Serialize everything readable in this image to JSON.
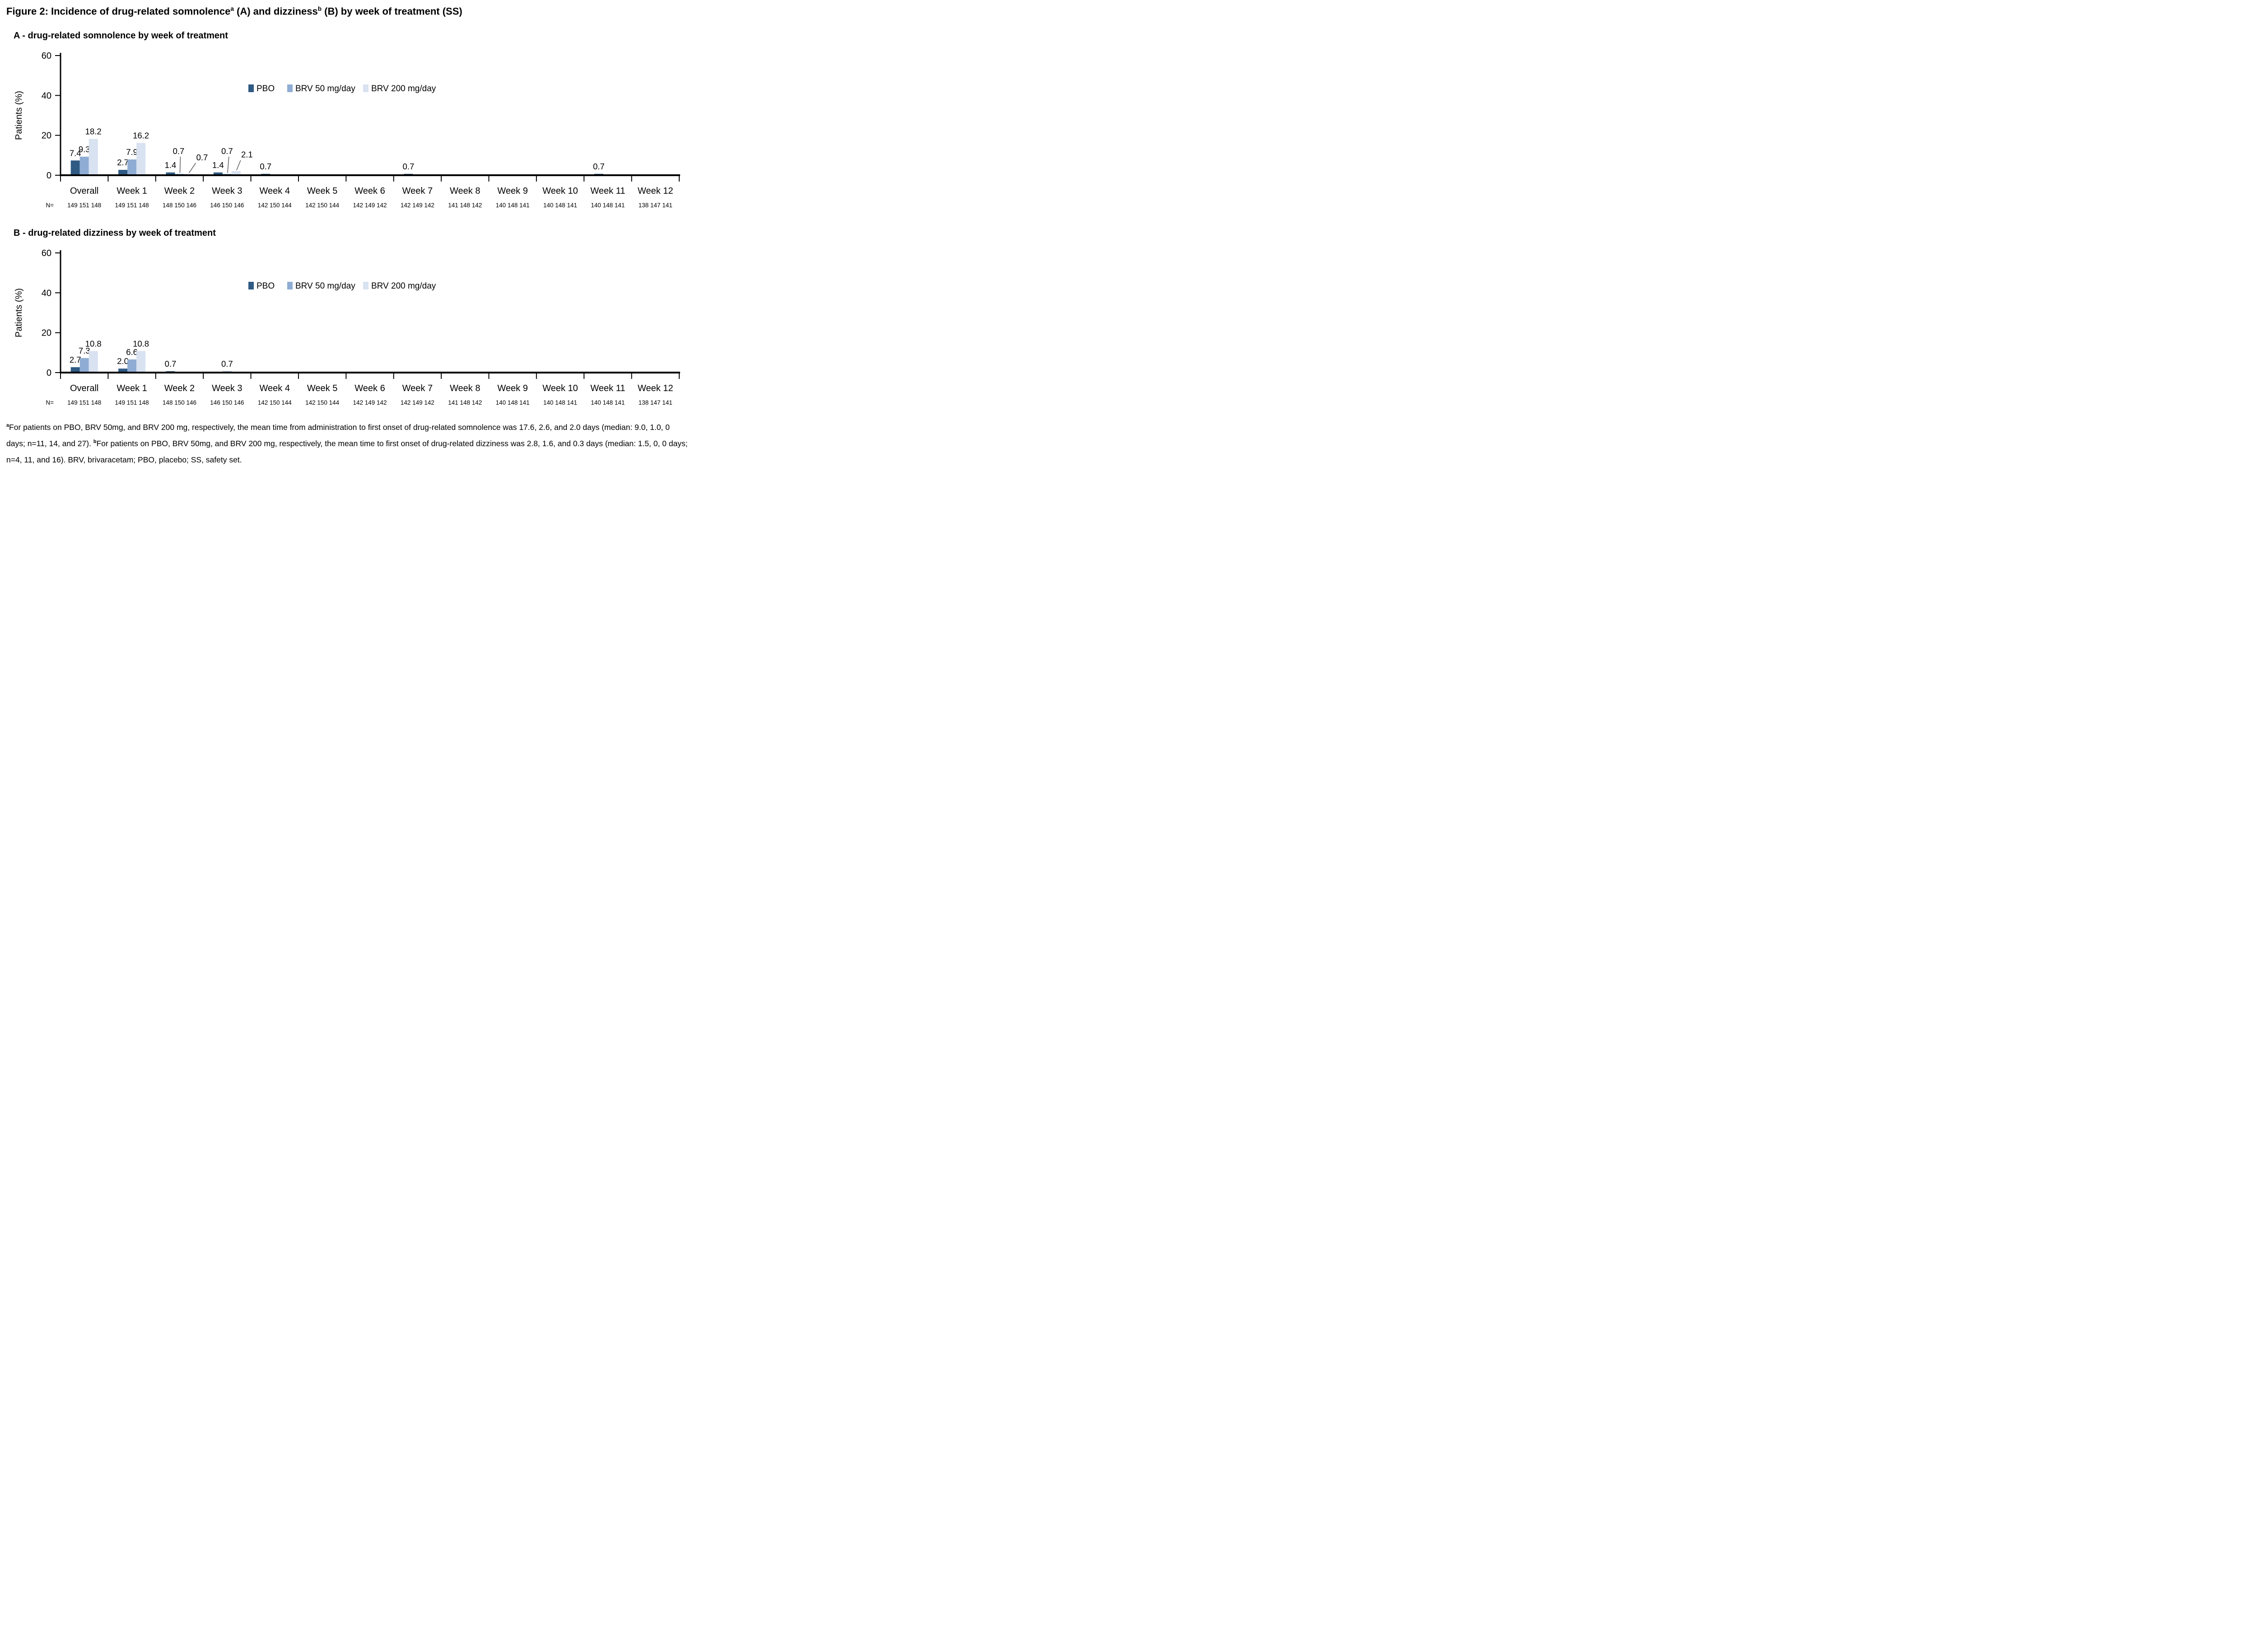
{
  "figure_title": {
    "part1": "Figure 2: Incidence of drug-related somnolence",
    "sup1": "a",
    "part2": " (A) and dizziness",
    "sup2": "b",
    "part3": " (B) by week of treatment (SS)"
  },
  "chart_data": [
    {
      "id": "A",
      "type": "bar",
      "title": "A - drug-related somnolence by week of treatment",
      "ylabel": "Patients (%)",
      "ylim": [
        0,
        60
      ],
      "yticks": [
        0,
        20,
        40,
        60
      ],
      "grid": false,
      "legend_position": "inside-top-center",
      "categories": [
        "Overall",
        "Week 1",
        "Week 2",
        "Week 3",
        "Week 4",
        "Week 5",
        "Week 6",
        "Week 7",
        "Week 8",
        "Week 9",
        "Week 10",
        "Week 11",
        "Week 12"
      ],
      "series": [
        {
          "name": "PBO",
          "color": "#2F5A83",
          "values": [
            7.4,
            2.7,
            1.4,
            1.4,
            0.7,
            0,
            0,
            0.7,
            0,
            0,
            0,
            0.7,
            0
          ]
        },
        {
          "name": "BRV 50 mg/day",
          "color": "#8FADD4",
          "values": [
            9.3,
            7.9,
            0.7,
            0.7,
            0,
            0,
            0,
            0,
            0,
            0,
            0,
            0,
            0
          ]
        },
        {
          "name": "BRV 200 mg/day",
          "color": "#D9E2F1",
          "values": [
            18.2,
            16.2,
            0.7,
            2.1,
            0,
            0,
            0,
            0,
            0,
            0,
            0,
            0,
            0
          ]
        }
      ],
      "n_row": {
        "label": "N=",
        "values": [
          "149 151 148",
          "149 151 148",
          "148 150 146",
          "146 150 146",
          "142 150 144",
          "142 150 144",
          "142 149 142",
          "142 149 142",
          "141 148 142",
          "140 148 141",
          "140 148 141",
          "140 148 141",
          "138 147 141"
        ]
      }
    },
    {
      "id": "B",
      "type": "bar",
      "title": "B - drug-related dizziness by week of treatment",
      "ylabel": "Patients (%)",
      "ylim": [
        0,
        60
      ],
      "yticks": [
        0,
        20,
        40,
        60
      ],
      "grid": false,
      "legend_position": "inside-top-center",
      "categories": [
        "Overall",
        "Week 1",
        "Week 2",
        "Week 3",
        "Week 4",
        "Week 5",
        "Week 6",
        "Week 7",
        "Week 8",
        "Week 9",
        "Week 10",
        "Week 11",
        "Week 12"
      ],
      "series": [
        {
          "name": "PBO",
          "color": "#2F5A83",
          "values": [
            2.7,
            2.0,
            0.7,
            0,
            0,
            0,
            0,
            0,
            0,
            0,
            0,
            0,
            0
          ]
        },
        {
          "name": "BRV 50 mg/day",
          "color": "#8FADD4",
          "values": [
            7.3,
            6.6,
            0,
            0.7,
            0,
            0,
            0,
            0,
            0,
            0,
            0,
            0,
            0
          ]
        },
        {
          "name": "BRV 200 mg/day",
          "color": "#D9E2F1",
          "values": [
            10.8,
            10.8,
            0,
            0,
            0,
            0,
            0,
            0,
            0,
            0,
            0,
            0,
            0
          ]
        }
      ],
      "n_row": {
        "label": "N=",
        "values": [
          "149 151 148",
          "149 151 148",
          "148 150 146",
          "146 150 146",
          "142 150 144",
          "142 150 144",
          "142 149 142",
          "142 149 142",
          "141 148 142",
          "140 148 141",
          "140 148 141",
          "140 148 141",
          "138 147 141"
        ]
      }
    }
  ],
  "footnote": {
    "sup_a": "a",
    "text_a": "For patients on PBO, BRV 50mg, and BRV 200 mg, respectively, the mean time from administration to first onset of drug-related somnolence was 17.6, 2.6, and 2.0 days (median: 9.0, 1.0, 0 days; n=11, 14, and 27). ",
    "sup_b": "b",
    "text_b": "For patients on PBO, BRV 50mg, and BRV 200 mg, respectively, the mean time to first onset of drug-related dizziness was 2.8, 1.6, and 0.3 days (median: 1.5, 0, 0 days; n=4, 11, and 16). BRV, brivaracetam; PBO, placebo; SS, safety set."
  }
}
